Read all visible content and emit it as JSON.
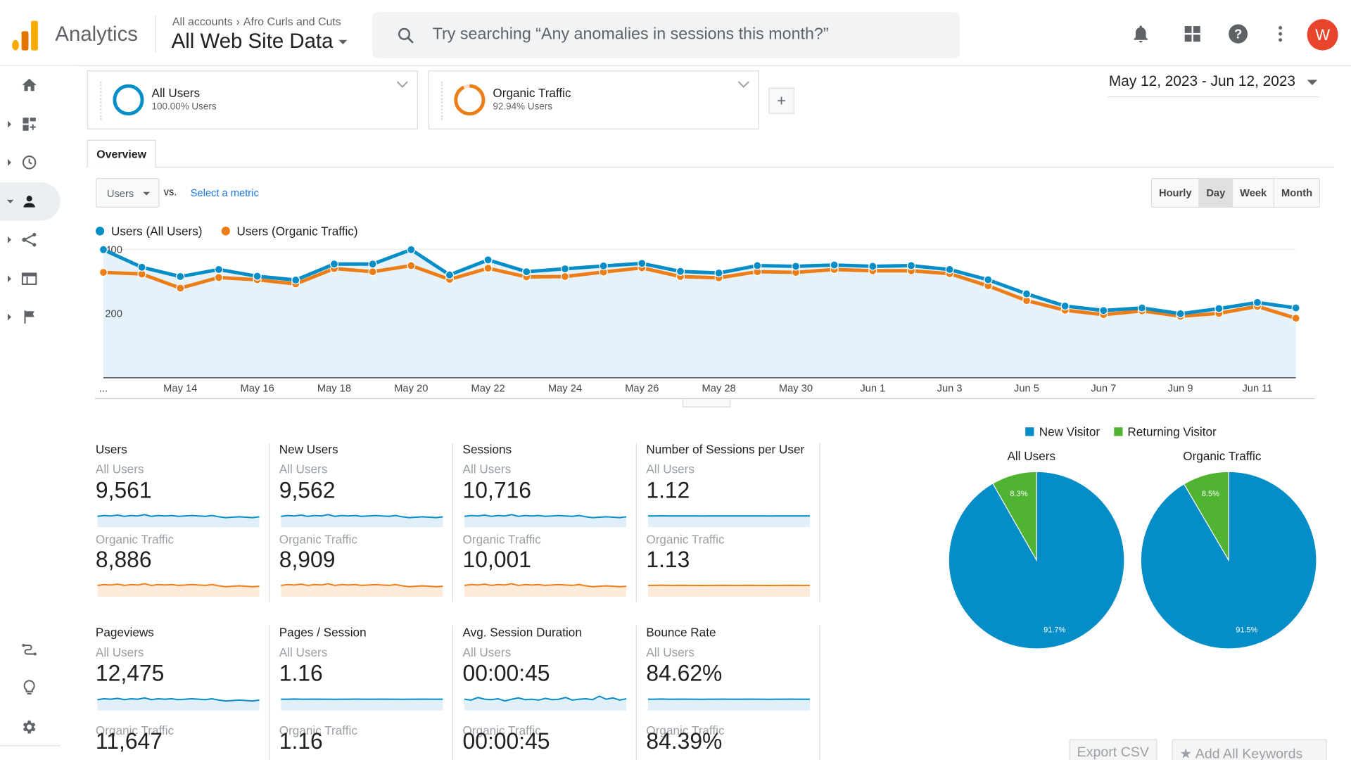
{
  "header": {
    "app_name": "Analytics",
    "breadcrumb": [
      "All accounts",
      "Afro Curls and Cuts"
    ],
    "property_name": "All Web Site Data",
    "search_placeholder": "Try searching “Any anomalies in sessions this month?”",
    "avatar_initial": "W"
  },
  "segments": [
    {
      "name": "All Users",
      "pct": "100.00% Users",
      "color": "#058dc7"
    },
    {
      "name": "Organic Traffic",
      "pct": "92.94% Users",
      "color": "#ed7e17"
    }
  ],
  "add_segment_label": "+",
  "date_range": "May 12, 2023 - Jun 12, 2023",
  "tabs": {
    "overview": "Overview"
  },
  "controls": {
    "metric": "Users",
    "vs": "vs.",
    "select_metric": "Select a metric",
    "granularity": [
      "Hourly",
      "Day",
      "Week",
      "Month"
    ],
    "active_granularity": "Day"
  },
  "chart_data": {
    "type": "line",
    "title": "",
    "legend": [
      "Users (All Users)",
      "Users (Organic Traffic)"
    ],
    "colors": [
      "#058dc7",
      "#ed7e17"
    ],
    "x": [
      "May 12",
      "May 13",
      "May 14",
      "May 15",
      "May 16",
      "May 17",
      "May 18",
      "May 19",
      "May 20",
      "May 21",
      "May 22",
      "May 23",
      "May 24",
      "May 25",
      "May 26",
      "May 27",
      "May 28",
      "May 29",
      "May 30",
      "May 31",
      "Jun 1",
      "Jun 2",
      "Jun 3",
      "Jun 4",
      "Jun 5",
      "Jun 6",
      "Jun 7",
      "Jun 8",
      "Jun 9",
      "Jun 10",
      "Jun 11",
      "Jun 12"
    ],
    "x_tick_labels": [
      "...",
      "May 14",
      "May 16",
      "May 18",
      "May 20",
      "May 22",
      "May 24",
      "May 26",
      "May 28",
      "May 30",
      "Jun 1",
      "Jun 3",
      "Jun 5",
      "Jun 7",
      "Jun 9",
      "Jun 11"
    ],
    "y_tick_labels": [
      "400",
      "200"
    ],
    "ylim": [
      0,
      420
    ],
    "series": [
      {
        "name": "Users (All Users)",
        "values": [
          400,
          345,
          316,
          338,
          317,
          305,
          355,
          355,
          400,
          321,
          368,
          331,
          340,
          349,
          357,
          332,
          327,
          350,
          348,
          352,
          348,
          350,
          338,
          306,
          262,
          224,
          210,
          218,
          200,
          216,
          235,
          218
        ]
      },
      {
        "name": "Users (Organic Traffic)",
        "values": [
          329,
          324,
          280,
          313,
          306,
          293,
          341,
          331,
          350,
          307,
          342,
          315,
          316,
          330,
          343,
          316,
          312,
          331,
          329,
          338,
          334,
          334,
          325,
          287,
          241,
          211,
          197,
          209,
          192,
          201,
          223,
          186
        ]
      }
    ]
  },
  "scorecards": [
    {
      "title": "Users",
      "all_label": "All Users",
      "all_value": "9,561",
      "org_label": "Organic Traffic",
      "org_value": "8,886",
      "all_trend": [
        0.55,
        0.45,
        0.5,
        0.4,
        0.55,
        0.45,
        0.5,
        0.35,
        0.55,
        0.45,
        0.5,
        0.45,
        0.55,
        0.5,
        0.45,
        0.5,
        0.55,
        0.45,
        0.6,
        0.7,
        0.65,
        0.6,
        0.65,
        0.7,
        0.6
      ],
      "org_trend": [
        0.5,
        0.4,
        0.45,
        0.35,
        0.5,
        0.4,
        0.45,
        0.3,
        0.5,
        0.4,
        0.45,
        0.4,
        0.5,
        0.45,
        0.4,
        0.45,
        0.5,
        0.4,
        0.55,
        0.65,
        0.6,
        0.55,
        0.6,
        0.65,
        0.6
      ]
    },
    {
      "title": "New Users",
      "all_label": "All Users",
      "all_value": "9,562",
      "org_label": "Organic Traffic",
      "org_value": "8,909",
      "all_trend": [
        0.55,
        0.45,
        0.5,
        0.4,
        0.55,
        0.45,
        0.5,
        0.35,
        0.55,
        0.45,
        0.5,
        0.45,
        0.55,
        0.5,
        0.45,
        0.5,
        0.55,
        0.45,
        0.6,
        0.7,
        0.65,
        0.6,
        0.65,
        0.7,
        0.6
      ],
      "org_trend": [
        0.5,
        0.4,
        0.45,
        0.35,
        0.5,
        0.4,
        0.45,
        0.3,
        0.5,
        0.4,
        0.45,
        0.4,
        0.5,
        0.45,
        0.4,
        0.45,
        0.5,
        0.4,
        0.55,
        0.65,
        0.6,
        0.55,
        0.6,
        0.65,
        0.6
      ]
    },
    {
      "title": "Sessions",
      "all_label": "All Users",
      "all_value": "10,716",
      "org_label": "Organic Traffic",
      "org_value": "10,001",
      "all_trend": [
        0.55,
        0.45,
        0.5,
        0.4,
        0.55,
        0.45,
        0.5,
        0.35,
        0.55,
        0.45,
        0.5,
        0.45,
        0.55,
        0.5,
        0.45,
        0.5,
        0.55,
        0.45,
        0.6,
        0.7,
        0.65,
        0.6,
        0.65,
        0.7,
        0.6
      ],
      "org_trend": [
        0.5,
        0.4,
        0.45,
        0.35,
        0.5,
        0.4,
        0.45,
        0.3,
        0.5,
        0.4,
        0.45,
        0.4,
        0.5,
        0.45,
        0.4,
        0.45,
        0.5,
        0.4,
        0.55,
        0.65,
        0.6,
        0.55,
        0.6,
        0.65,
        0.6
      ]
    },
    {
      "title": "Number of Sessions per User",
      "all_label": "All Users",
      "all_value": "1.12",
      "org_label": "Organic Traffic",
      "org_value": "1.13",
      "all_trend": [
        0.5,
        0.5,
        0.48,
        0.5,
        0.5,
        0.49,
        0.5,
        0.5,
        0.51,
        0.5,
        0.5,
        0.49,
        0.5,
        0.5,
        0.5,
        0.49,
        0.5,
        0.5,
        0.51,
        0.5,
        0.5,
        0.49,
        0.5,
        0.5,
        0.5
      ],
      "org_trend": [
        0.5,
        0.5,
        0.48,
        0.5,
        0.5,
        0.49,
        0.5,
        0.5,
        0.51,
        0.5,
        0.5,
        0.49,
        0.5,
        0.5,
        0.5,
        0.49,
        0.5,
        0.5,
        0.51,
        0.5,
        0.5,
        0.49,
        0.5,
        0.5,
        0.5
      ]
    },
    {
      "title": "Pageviews",
      "all_label": "All Users",
      "all_value": "12,475",
      "org_label": "Organic Traffic",
      "org_value": "11,647",
      "all_trend": [
        0.55,
        0.45,
        0.5,
        0.4,
        0.55,
        0.45,
        0.5,
        0.35,
        0.55,
        0.45,
        0.5,
        0.45,
        0.55,
        0.5,
        0.45,
        0.5,
        0.55,
        0.45,
        0.6,
        0.7,
        0.65,
        0.6,
        0.65,
        0.7,
        0.6
      ],
      "org_trend": []
    },
    {
      "title": "Pages / Session",
      "all_label": "All Users",
      "all_value": "1.16",
      "org_label": "Organic Traffic",
      "org_value": "1.16",
      "all_trend": [
        0.5,
        0.5,
        0.48,
        0.5,
        0.5,
        0.49,
        0.5,
        0.5,
        0.51,
        0.5,
        0.5,
        0.49,
        0.5,
        0.5,
        0.5,
        0.49,
        0.5,
        0.5,
        0.51,
        0.5,
        0.5,
        0.49,
        0.5,
        0.5,
        0.5
      ],
      "org_trend": []
    },
    {
      "title": "Avg. Session Duration",
      "all_label": "All Users",
      "all_value": "00:00:45",
      "org_label": "Organic Traffic",
      "org_value": "00:00:45",
      "all_trend": [
        0.5,
        0.6,
        0.3,
        0.5,
        0.55,
        0.45,
        0.7,
        0.5,
        0.35,
        0.55,
        0.5,
        0.6,
        0.4,
        0.55,
        0.5,
        0.3,
        0.6,
        0.5,
        0.45,
        0.55,
        0.15,
        0.5,
        0.35,
        0.6,
        0.45
      ],
      "org_trend": []
    },
    {
      "title": "Bounce Rate",
      "all_label": "All Users",
      "all_value": "84.62%",
      "org_label": "Organic Traffic",
      "org_value": "84.39%",
      "all_trend": [
        0.5,
        0.5,
        0.48,
        0.5,
        0.5,
        0.49,
        0.5,
        0.5,
        0.51,
        0.5,
        0.5,
        0.49,
        0.5,
        0.5,
        0.5,
        0.49,
        0.5,
        0.5,
        0.51,
        0.5,
        0.5,
        0.49,
        0.5,
        0.5,
        0.5
      ],
      "org_trend": []
    }
  ],
  "pies": {
    "legend": [
      "New Visitor",
      "Returning Visitor"
    ],
    "colors": [
      "#058dc7",
      "#50b432"
    ],
    "charts": [
      {
        "title": "All Users",
        "new_pct": 91.7,
        "returning_pct": 8.3,
        "new_label": "91.7%",
        "returning_label": "8.3%"
      },
      {
        "title": "Organic Traffic",
        "new_pct": 91.5,
        "returning_pct": 8.5,
        "new_label": "91.5%",
        "returning_label": "8.5%"
      }
    ]
  },
  "footer_buttons": {
    "export": "Export CSV",
    "keywords": "Add All Keywords"
  }
}
